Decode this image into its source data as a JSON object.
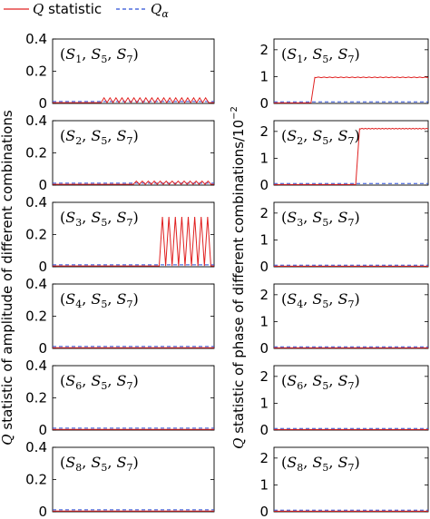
{
  "legend": {
    "q_label": "Q statistic",
    "qa_label": "Qα"
  },
  "y_label_left": "Q statistic of amplitude of different combinations",
  "y_label_right": "Q statistic of phase of different combinations/10⁻²",
  "colors": {
    "q": "#e02020",
    "q_alpha": "#2a4fd6",
    "frame": "#000000"
  },
  "chart_data": [
    {
      "type": "line",
      "column": "left",
      "panel_label": "(S1, S5, S7)",
      "ylim": [
        0,
        0.4
      ],
      "yticks": [
        0,
        0.2,
        0.4
      ],
      "ytick_labels": [
        "0",
        "0.2",
        "0.4"
      ],
      "series": [
        {
          "name": "Q statistic",
          "pattern": "periodic_spikes",
          "baseline": 0.005,
          "start": 0.3,
          "end": 1.0,
          "period": 0.037,
          "peak": 0.035
        },
        {
          "name": "Qα",
          "constant": 0.012
        }
      ]
    },
    {
      "type": "line",
      "column": "left",
      "panel_label": "(S2, S5, S7)",
      "ylim": [
        0,
        0.4
      ],
      "yticks": [
        0,
        0.2,
        0.4
      ],
      "ytick_labels": [
        "0",
        "0.2",
        "0.4"
      ],
      "series": [
        {
          "name": "Q statistic",
          "pattern": "periodic_spikes",
          "baseline": 0.005,
          "start": 0.5,
          "end": 1.0,
          "period": 0.037,
          "peak": 0.025
        },
        {
          "name": "Qα",
          "constant": 0.012
        }
      ]
    },
    {
      "type": "line",
      "column": "left",
      "panel_label": "(S3, S5, S7)",
      "ylim": [
        0,
        0.4
      ],
      "yticks": [
        0,
        0.2,
        0.4
      ],
      "ytick_labels": [
        "0",
        "0.2",
        "0.4"
      ],
      "series": [
        {
          "name": "Q statistic",
          "pattern": "periodic_spikes",
          "baseline": 0.005,
          "start": 0.66,
          "end": 1.0,
          "period": 0.04,
          "peak": 0.31
        },
        {
          "name": "Qα",
          "constant": 0.012
        }
      ]
    },
    {
      "type": "line",
      "column": "left",
      "panel_label": "(S4, S5, S7)",
      "ylim": [
        0,
        0.4
      ],
      "yticks": [
        0,
        0.2,
        0.4
      ],
      "ytick_labels": [
        "0",
        "0.2",
        "0.4"
      ],
      "series": [
        {
          "name": "Q statistic",
          "pattern": "flat",
          "value": 0.004
        },
        {
          "name": "Qα",
          "constant": 0.012
        }
      ]
    },
    {
      "type": "line",
      "column": "left",
      "panel_label": "(S6, S5, S7)",
      "ylim": [
        0,
        0.4
      ],
      "yticks": [
        0,
        0.2,
        0.4
      ],
      "ytick_labels": [
        "0",
        "0.2",
        "0.4"
      ],
      "series": [
        {
          "name": "Q statistic",
          "pattern": "flat",
          "value": 0.004
        },
        {
          "name": "Qα",
          "constant": 0.012
        }
      ]
    },
    {
      "type": "line",
      "column": "left",
      "panel_label": "(S8, S5, S7)",
      "ylim": [
        0,
        0.4
      ],
      "yticks": [
        0,
        0.2,
        0.4
      ],
      "ytick_labels": [
        "0",
        "0.2",
        "0.4"
      ],
      "series": [
        {
          "name": "Q statistic",
          "pattern": "flat",
          "value": 0.004
        },
        {
          "name": "Qα",
          "constant": 0.012
        }
      ]
    },
    {
      "type": "line",
      "column": "right",
      "panel_label": "(S1, S5, S7)",
      "ylim": [
        0,
        2.4
      ],
      "yticks": [
        0,
        1,
        2
      ],
      "ytick_labels": [
        "0",
        "1",
        "2"
      ],
      "series": [
        {
          "name": "Q statistic",
          "pattern": "step",
          "before": 0.02,
          "after": 0.97,
          "step_at": 0.25
        },
        {
          "name": "Qα",
          "constant": 0.06
        }
      ]
    },
    {
      "type": "line",
      "column": "right",
      "panel_label": "(S2, S5, S7)",
      "ylim": [
        0,
        2.4
      ],
      "yticks": [
        0,
        1,
        2
      ],
      "ytick_labels": [
        "0",
        "1",
        "2"
      ],
      "series": [
        {
          "name": "Q statistic",
          "pattern": "step",
          "before": 0.02,
          "after": 2.1,
          "step_at": 0.54
        },
        {
          "name": "Qα",
          "constant": 0.06
        }
      ]
    },
    {
      "type": "line",
      "column": "right",
      "panel_label": "(S3, S5, S7)",
      "ylim": [
        0,
        2.4
      ],
      "yticks": [
        0,
        1,
        2
      ],
      "ytick_labels": [
        "0",
        "1",
        "2"
      ],
      "series": [
        {
          "name": "Q statistic",
          "pattern": "flat",
          "value": 0.02
        },
        {
          "name": "Qα",
          "constant": 0.06
        }
      ]
    },
    {
      "type": "line",
      "column": "right",
      "panel_label": "(S4, S5, S7)",
      "ylim": [
        0,
        2.4
      ],
      "yticks": [
        0,
        1,
        2
      ],
      "ytick_labels": [
        "0",
        "1",
        "2"
      ],
      "series": [
        {
          "name": "Q statistic",
          "pattern": "flat",
          "value": 0.02
        },
        {
          "name": "Qα",
          "constant": 0.06
        }
      ]
    },
    {
      "type": "line",
      "column": "right",
      "panel_label": "(S6, S5, S7)",
      "ylim": [
        0,
        2.4
      ],
      "yticks": [
        0,
        1,
        2
      ],
      "ytick_labels": [
        "0",
        "1",
        "2"
      ],
      "series": [
        {
          "name": "Q statistic",
          "pattern": "flat",
          "value": 0.02
        },
        {
          "name": "Qα",
          "constant": 0.06
        }
      ]
    },
    {
      "type": "line",
      "column": "right",
      "panel_label": "(S8, S5, S7)",
      "ylim": [
        0,
        2.4
      ],
      "yticks": [
        0,
        1,
        2
      ],
      "ytick_labels": [
        "0",
        "1",
        "2"
      ],
      "series": [
        {
          "name": "Q statistic",
          "pattern": "flat",
          "value": 0.02
        },
        {
          "name": "Qα",
          "constant": 0.06
        }
      ]
    }
  ]
}
